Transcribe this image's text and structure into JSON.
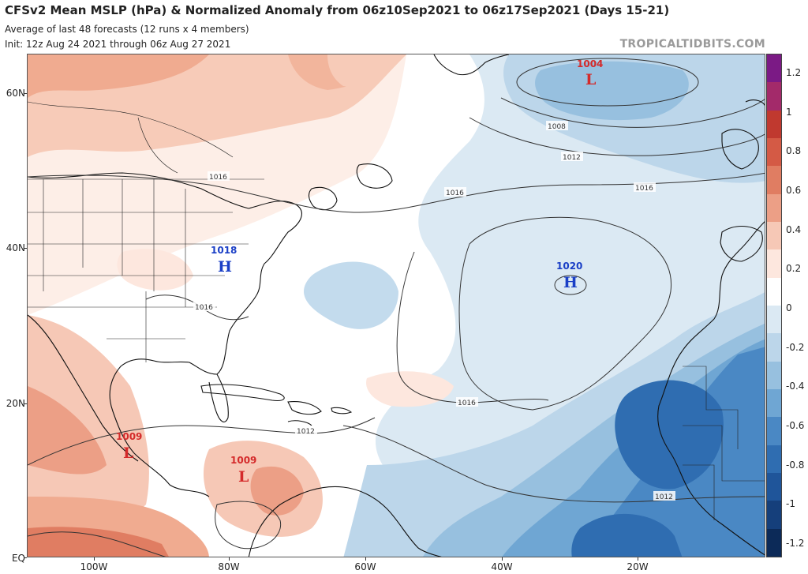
{
  "header": {
    "title": "CFSv2 Mean MSLP (hPa) & Normalized Anomaly from 06z10Sep2021 to 06z17Sep2021 (Days 15-21)",
    "subtitle": "Average of last 48 forecasts (12 runs x 4 members)",
    "init": "Init: 12z Aug 24 2021 through 06z Aug 27 2021",
    "brand": "TROPICALTIDBITS.COM"
  },
  "axes": {
    "lat_labels": [
      "60N",
      "40N",
      "20N",
      "EQ"
    ],
    "lon_labels": [
      "100W",
      "80W",
      "60W",
      "40W",
      "20W"
    ]
  },
  "colorbar": {
    "labels": [
      "1.2",
      "1",
      "0.8",
      "0.6",
      "0.4",
      "0.2",
      "0",
      "-0.2",
      "-0.4",
      "-0.6",
      "-0.8",
      "-1",
      "-1.2"
    ],
    "colors": [
      "#7b1a85",
      "#a32a6a",
      "#c0392f",
      "#d45a45",
      "#e07d62",
      "#ec9f86",
      "#f6c8b6",
      "#fde7de",
      "#ffffff",
      "#dbe9f3",
      "#bcd6ea",
      "#97c0df",
      "#6fa6d3",
      "#4a88c4",
      "#2f6db1",
      "#1f559a",
      "#153f7b",
      "#0c2a58"
    ]
  },
  "pressure_systems": [
    {
      "type": "L",
      "value": "1004",
      "color": "#d42a2a"
    },
    {
      "type": "H",
      "value": "1018",
      "color": "#1a3fc6"
    },
    {
      "type": "H",
      "value": "1020",
      "color": "#1a3fc6"
    },
    {
      "type": "L",
      "value": "1009",
      "color": "#d42a2a"
    },
    {
      "type": "L",
      "value": "1009",
      "color": "#d42a2a"
    }
  ],
  "isobar_labels": [
    "1008",
    "1012",
    "1016",
    "1016",
    "1016",
    "1016",
    "1016",
    "1012",
    "1012"
  ]
}
